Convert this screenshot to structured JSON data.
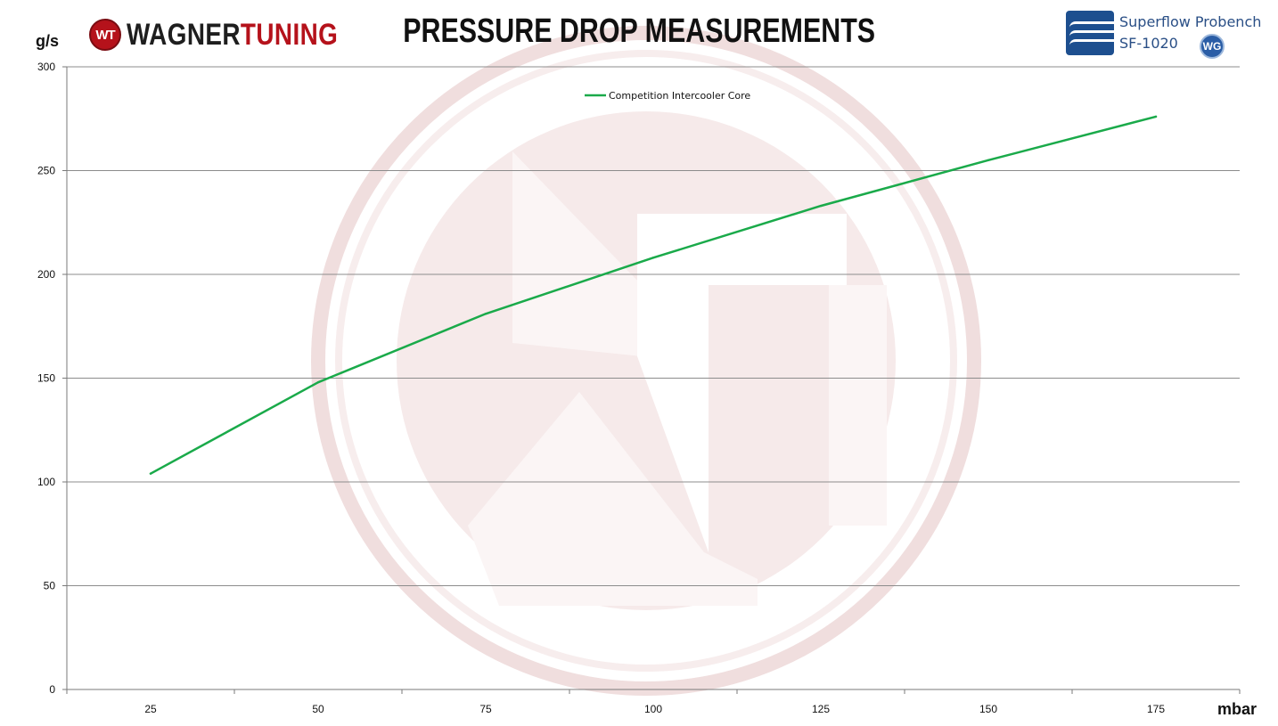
{
  "header": {
    "brand_part1": "WAGNER",
    "brand_part2": "TUNING",
    "brand_badge": "WT",
    "title": "PRESSURE DROP MEASUREMENTS",
    "bench_name": "Superflow Probench",
    "bench_model": "SF-1020",
    "bench_badge": "WG"
  },
  "colors": {
    "series": "#1aaa4a",
    "brand_red": "#b5121b",
    "watermark": "#f0dede",
    "grid": "#8c8c8c"
  },
  "chart_data": {
    "type": "line",
    "title": "PRESSURE DROP MEASUREMENTS",
    "xlabel": "mbar",
    "ylabel": "g/s",
    "categories": [
      "25",
      "50",
      "75",
      "100",
      "125",
      "150",
      "175"
    ],
    "series": [
      {
        "name": "Competition Intercooler Core",
        "values": [
          104,
          148,
          181,
          208,
          233,
          255,
          276
        ]
      }
    ],
    "ylim": [
      0,
      300
    ],
    "yticks": [
      "0",
      "50",
      "100",
      "150",
      "200",
      "250",
      "300"
    ],
    "grid": true,
    "legend": "top-center"
  }
}
